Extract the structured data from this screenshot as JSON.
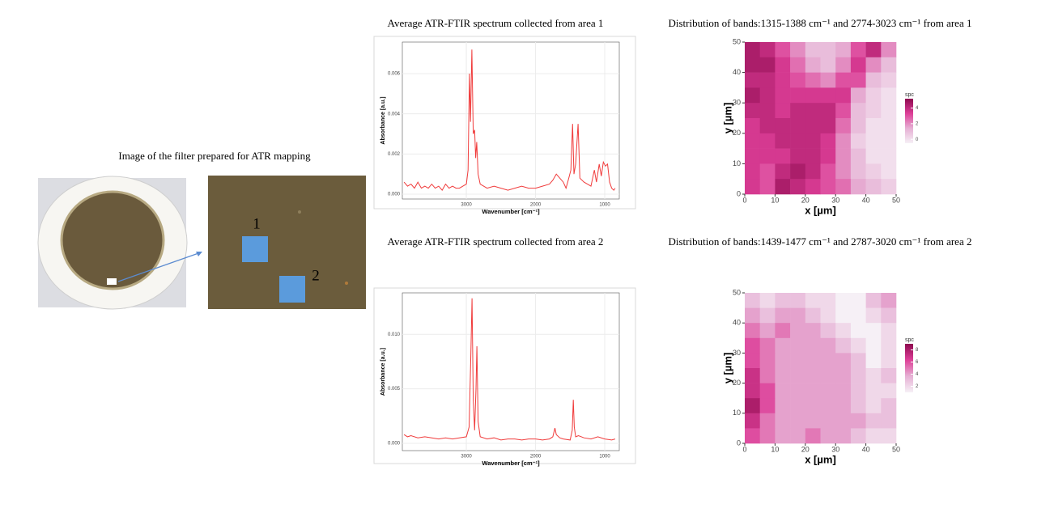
{
  "photo": {
    "caption": "Image of the filter prepared for ATR mapping",
    "labels": [
      "1",
      "2"
    ]
  },
  "chart_data": [
    {
      "type": "line",
      "title": "Average ATR-FTIR spectrum collected from area 1",
      "xlabel": "Wavenumber [cm⁻¹]",
      "ylabel": "Absorbance [a.u.]",
      "color": "#f03b3b",
      "grid": true,
      "xlim": [
        3925,
        790
      ],
      "xticks": [
        3000,
        2000,
        1000
      ],
      "ylim": [
        -0.00024,
        0.00757
      ],
      "yticks": [
        {
          "value": 0,
          "label": "0.000"
        },
        {
          "value": 0.002,
          "label": "0.002"
        },
        {
          "value": 0.004,
          "label": "0.004"
        },
        {
          "value": 0.006,
          "label": "0.006"
        }
      ],
      "x": [
        3900,
        3850,
        3800,
        3750,
        3700,
        3650,
        3600,
        3550,
        3500,
        3450,
        3400,
        3350,
        3300,
        3250,
        3200,
        3150,
        3100,
        3050,
        3000,
        2975,
        2955,
        2940,
        2920,
        2900,
        2880,
        2865,
        2850,
        2830,
        2800,
        2750,
        2700,
        2600,
        2500,
        2400,
        2300,
        2200,
        2100,
        2000,
        1900,
        1800,
        1750,
        1700,
        1650,
        1600,
        1560,
        1520,
        1490,
        1465,
        1445,
        1420,
        1385,
        1360,
        1300,
        1250,
        1200,
        1150,
        1120,
        1080,
        1050,
        1020,
        990,
        960,
        930,
        900,
        870,
        850
      ],
      "values": [
        0.0006,
        0.0004,
        0.0005,
        0.0003,
        0.0006,
        0.0003,
        0.0004,
        0.0003,
        0.0005,
        0.0003,
        0.0004,
        0.0002,
        0.0005,
        0.0003,
        0.0004,
        0.0003,
        0.0003,
        0.0004,
        0.0005,
        0.0012,
        0.006,
        0.0036,
        0.0072,
        0.003,
        0.0032,
        0.0018,
        0.0026,
        0.001,
        0.0005,
        0.0004,
        0.0003,
        0.0004,
        0.0003,
        0.0002,
        0.0003,
        0.0004,
        0.0003,
        0.0003,
        0.0004,
        0.0005,
        0.0007,
        0.001,
        0.0008,
        0.0006,
        0.0003,
        0.0008,
        0.0012,
        0.0035,
        0.001,
        0.0015,
        0.0035,
        0.0008,
        0.0006,
        0.0005,
        0.0004,
        0.0012,
        0.0006,
        0.0015,
        0.0009,
        0.0016,
        0.0014,
        0.0015,
        0.0006,
        0.0003,
        0.0002,
        0.0003
      ]
    },
    {
      "type": "heatmap",
      "title": "Distribution of bands:1315-1388 cm⁻¹ and 2774-3023 cm⁻¹ from area 1",
      "xlabel": "x [µm]",
      "ylabel": "y [µm]",
      "xlim": [
        0,
        50
      ],
      "ylim": [
        0,
        50
      ],
      "xticks": [
        0,
        10,
        20,
        30,
        40,
        50
      ],
      "yticks": [
        0,
        10,
        20,
        30,
        40,
        50
      ],
      "colorbar": {
        "label": "spc",
        "lim": [
          -0.5,
          5.2
        ],
        "ticks": [
          0,
          2,
          4
        ],
        "colors": [
          "#f6f0f6",
          "#e6b0d4",
          "#dd3f98",
          "#8e0a4f"
        ]
      },
      "z": [
        [
          4.5,
          4,
          3,
          2,
          1,
          1,
          1.5,
          3,
          4,
          2
        ],
        [
          4.5,
          4.5,
          3.5,
          2.5,
          1.5,
          1,
          2,
          3.5,
          2,
          1
        ],
        [
          4,
          4,
          3.5,
          3,
          2.5,
          2,
          3,
          3,
          1,
          0.5
        ],
        [
          4.5,
          4,
          3.5,
          3.5,
          3.5,
          3.5,
          3.5,
          1.5,
          0.5,
          0
        ],
        [
          4,
          4,
          3.5,
          4,
          4,
          4,
          3,
          1,
          0.5,
          0
        ],
        [
          3.5,
          4,
          4,
          4,
          4,
          4,
          2.5,
          1,
          0,
          0
        ],
        [
          3.5,
          3.5,
          4,
          4,
          4,
          3.5,
          2,
          0.5,
          0,
          0
        ],
        [
          3.5,
          3.5,
          3.5,
          4,
          4,
          3.5,
          2,
          1,
          0,
          0
        ],
        [
          3.5,
          3,
          4,
          4.5,
          4,
          3,
          2,
          1,
          0.5,
          0
        ],
        [
          3.5,
          3,
          4.5,
          4,
          3.5,
          3,
          2.5,
          1.5,
          1,
          0.5
        ]
      ]
    },
    {
      "type": "line",
      "title": "Average ATR-FTIR spectrum collected from area 2",
      "xlabel": "Wavenumber [cm⁻¹]",
      "ylabel": "Absorbance [a.u.]",
      "color": "#f03b3b",
      "grid": true,
      "xlim": [
        3925,
        790
      ],
      "xticks": [
        3000,
        2000,
        1000
      ],
      "ylim": [
        -0.00067,
        0.0138
      ],
      "yticks": [
        {
          "value": 0,
          "label": "0.000"
        },
        {
          "value": 0.005,
          "label": "0.005"
        },
        {
          "value": 0.01,
          "label": "0.010"
        }
      ],
      "x": [
        3900,
        3850,
        3800,
        3700,
        3600,
        3500,
        3400,
        3300,
        3200,
        3100,
        3000,
        2960,
        2935,
        2918,
        2900,
        2880,
        2860,
        2848,
        2830,
        2800,
        2700,
        2600,
        2500,
        2400,
        2300,
        2200,
        2100,
        2000,
        1900,
        1800,
        1750,
        1720,
        1700,
        1650,
        1600,
        1500,
        1470,
        1455,
        1440,
        1420,
        1380,
        1300,
        1200,
        1100,
        1000,
        900,
        850
      ],
      "values": [
        0.0008,
        0.0006,
        0.0007,
        0.0005,
        0.0006,
        0.0005,
        0.0004,
        0.0005,
        0.0004,
        0.0005,
        0.0006,
        0.0015,
        0.008,
        0.0133,
        0.004,
        0.0012,
        0.005,
        0.0089,
        0.002,
        0.0006,
        0.0004,
        0.0005,
        0.0003,
        0.0004,
        0.0004,
        0.0003,
        0.0004,
        0.0004,
        0.0003,
        0.0004,
        0.0006,
        0.0014,
        0.0008,
        0.0005,
        0.0004,
        0.0003,
        0.0012,
        0.004,
        0.0015,
        0.0006,
        0.0007,
        0.0005,
        0.0004,
        0.0006,
        0.0004,
        0.0003,
        0.0004
      ]
    },
    {
      "type": "heatmap",
      "title": "Distribution of bands:1439-1477 cm⁻¹ and 2787-3020 cm⁻¹ from area 2",
      "xlabel": "x [µm]",
      "ylabel": "y [µm]",
      "xlim": [
        0,
        50
      ],
      "ylim": [
        0,
        50
      ],
      "xticks": [
        0,
        10,
        20,
        30,
        40,
        50
      ],
      "yticks": [
        0,
        10,
        20,
        30,
        40,
        50
      ],
      "colorbar": {
        "label": "spc",
        "lim": [
          1,
          9
        ],
        "ticks": [
          2,
          4,
          6,
          8
        ],
        "colors": [
          "#f6f0f6",
          "#e6b0d4",
          "#dd3f98",
          "#8e0a4f"
        ]
      },
      "z": [
        [
          3,
          2,
          3,
          3,
          2,
          2,
          1,
          1,
          3,
          4
        ],
        [
          4,
          3,
          4,
          4,
          3,
          2,
          1,
          1,
          2,
          3
        ],
        [
          5,
          4,
          5,
          4,
          4,
          3,
          2,
          1,
          1,
          2
        ],
        [
          6,
          5,
          4,
          4,
          4,
          4,
          3,
          2,
          1,
          2
        ],
        [
          6,
          5,
          4,
          4,
          4,
          4,
          4,
          3,
          1,
          2
        ],
        [
          7,
          5,
          4,
          4,
          4,
          4,
          4,
          3,
          2,
          3
        ],
        [
          7,
          6,
          4,
          4,
          4,
          4,
          4,
          3,
          2,
          2
        ],
        [
          8,
          6,
          4,
          4,
          4,
          4,
          4,
          3,
          2,
          3
        ],
        [
          7,
          5,
          4,
          4,
          4,
          4,
          4,
          4,
          3,
          3
        ],
        [
          6,
          5,
          4,
          4,
          5,
          4,
          4,
          3,
          2,
          2
        ]
      ]
    }
  ]
}
